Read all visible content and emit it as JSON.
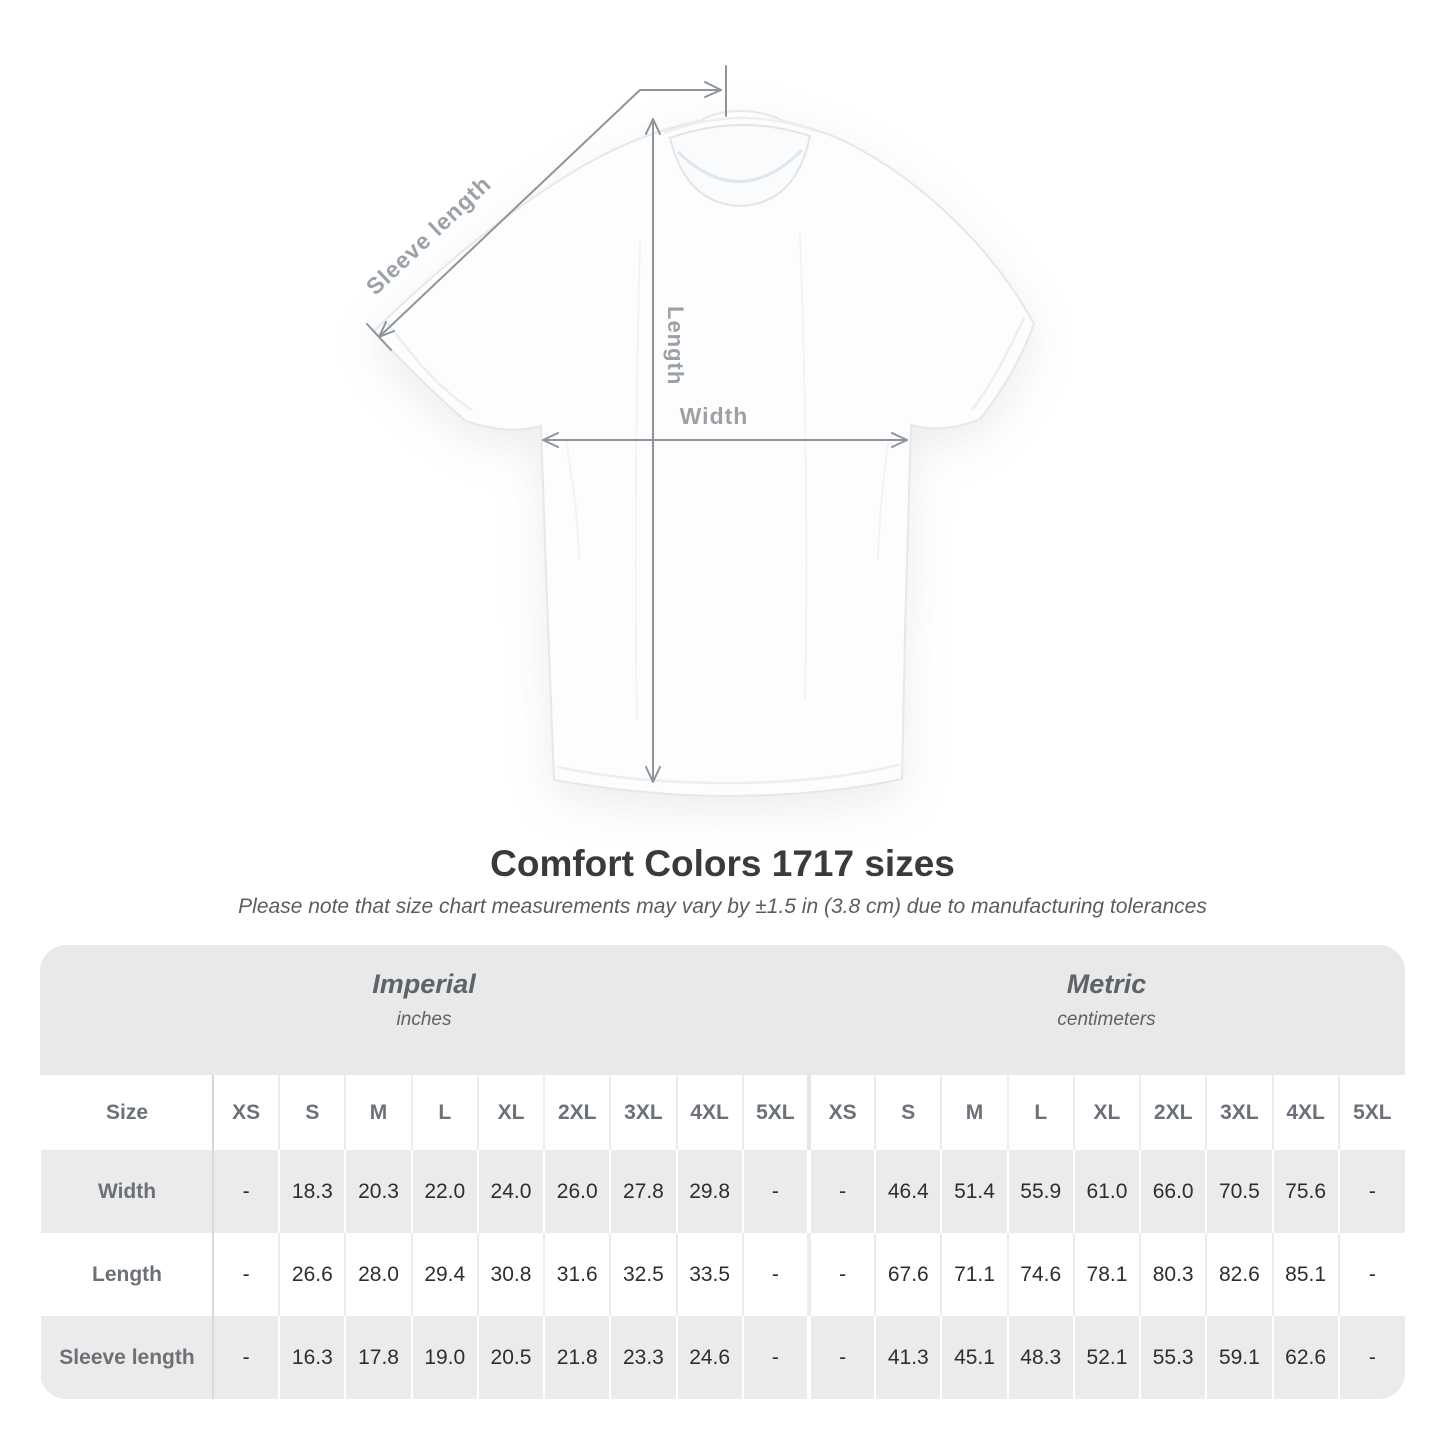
{
  "title": "Comfort Colors 1717 sizes",
  "subtitle": "Please note that size chart measurements may vary by ±1.5 in (3.8 cm) due to manufacturing tolerances",
  "diagram": {
    "labels": {
      "sleeve_length": "Sleeve length",
      "length": "Length",
      "width": "Width"
    }
  },
  "colors": {
    "annotation_line": "#8d949b",
    "annotation_label": "#9aa1a7",
    "band_bg": "#e9e9e9",
    "row_alt_bg": "#ebebeb",
    "header_text": "#6b7177",
    "value_text": "#2e2e2e"
  },
  "chart_data": {
    "type": "table",
    "title": "Comfort Colors 1717 sizes",
    "size_col_header": "Size",
    "sizes": [
      "XS",
      "S",
      "M",
      "L",
      "XL",
      "2XL",
      "3XL",
      "4XL",
      "5XL"
    ],
    "sections": [
      {
        "name": "Imperial",
        "unit": "inches"
      },
      {
        "name": "Metric",
        "unit": "centimeters"
      }
    ],
    "rows": [
      {
        "label": "Width",
        "imperial": [
          "-",
          "18.3",
          "20.3",
          "22.0",
          "24.0",
          "26.0",
          "27.8",
          "29.8",
          "-"
        ],
        "metric": [
          "-",
          "46.4",
          "51.4",
          "55.9",
          "61.0",
          "66.0",
          "70.5",
          "75.6",
          "-"
        ]
      },
      {
        "label": "Length",
        "imperial": [
          "-",
          "26.6",
          "28.0",
          "29.4",
          "30.8",
          "31.6",
          "32.5",
          "33.5",
          "-"
        ],
        "metric": [
          "-",
          "67.6",
          "71.1",
          "74.6",
          "78.1",
          "80.3",
          "82.6",
          "85.1",
          "-"
        ]
      },
      {
        "label": "Sleeve length",
        "imperial": [
          "-",
          "16.3",
          "17.8",
          "19.0",
          "20.5",
          "21.8",
          "23.3",
          "24.6",
          "-"
        ],
        "metric": [
          "-",
          "41.3",
          "45.1",
          "48.3",
          "52.1",
          "55.3",
          "59.1",
          "62.6",
          "-"
        ]
      }
    ]
  }
}
